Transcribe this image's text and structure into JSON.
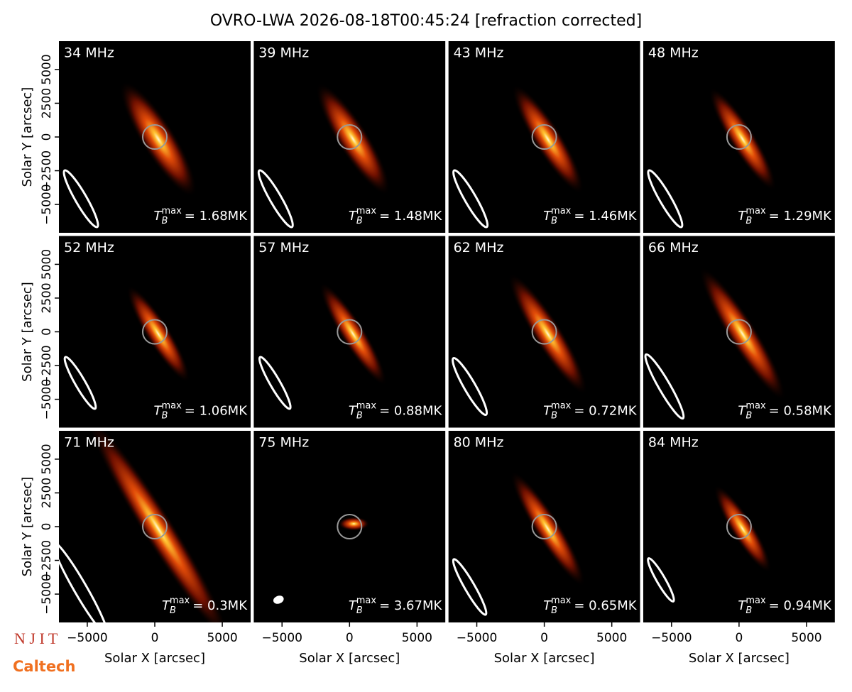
{
  "title": "OVRO-LWA 2026-08-18T00:45:24 [refraction corrected]",
  "logos": [
    "N J I T",
    "Caltech"
  ],
  "chart_data": [
    {
      "type": "image",
      "title": "34 MHz",
      "annotation": {
        "symbol": "T",
        "subscript": "B",
        "superscript": "max",
        "text": "= 1.68MK"
      },
      "xlim": [
        -7100,
        7100
      ],
      "ylim": [
        -7100,
        7100
      ],
      "ylabel": "Solar Y [arcsec]",
      "yticks": [
        {
          "value": 5000,
          "label": "5000"
        },
        {
          "value": 2500,
          "label": "2500"
        },
        {
          "value": 0,
          "label": "0"
        },
        {
          "value": -2500,
          "label": "−2500"
        },
        {
          "value": -5000,
          "label": "−5000"
        }
      ]
    },
    {
      "type": "image",
      "title": "39 MHz",
      "annotation": {
        "symbol": "T",
        "subscript": "B",
        "superscript": "max",
        "text": "= 1.48MK"
      },
      "xlim": [
        -7100,
        7100
      ],
      "ylim": [
        -7100,
        7100
      ]
    },
    {
      "type": "image",
      "title": "43 MHz",
      "annotation": {
        "symbol": "T",
        "subscript": "B",
        "superscript": "max",
        "text": "= 1.46MK"
      },
      "xlim": [
        -7100,
        7100
      ],
      "ylim": [
        -7100,
        7100
      ]
    },
    {
      "type": "image",
      "title": "48 MHz",
      "annotation": {
        "symbol": "T",
        "subscript": "B",
        "superscript": "max",
        "text": "= 1.29MK"
      },
      "xlim": [
        -7100,
        7100
      ],
      "ylim": [
        -7100,
        7100
      ]
    },
    {
      "type": "image",
      "title": "52 MHz",
      "annotation": {
        "symbol": "T",
        "subscript": "B",
        "superscript": "max",
        "text": "= 1.06MK"
      },
      "xlim": [
        -7100,
        7100
      ],
      "ylim": [
        -7100,
        7100
      ],
      "ylabel": "Solar Y [arcsec]",
      "yticks": [
        {
          "value": 5000,
          "label": "5000"
        },
        {
          "value": 2500,
          "label": "2500"
        },
        {
          "value": 0,
          "label": "0"
        },
        {
          "value": -2500,
          "label": "−2500"
        },
        {
          "value": -5000,
          "label": "−5000"
        }
      ]
    },
    {
      "type": "image",
      "title": "57 MHz",
      "annotation": {
        "symbol": "T",
        "subscript": "B",
        "superscript": "max",
        "text": "= 0.88MK"
      },
      "xlim": [
        -7100,
        7100
      ],
      "ylim": [
        -7100,
        7100
      ]
    },
    {
      "type": "image",
      "title": "62 MHz",
      "annotation": {
        "symbol": "T",
        "subscript": "B",
        "superscript": "max",
        "text": "= 0.72MK"
      },
      "xlim": [
        -7100,
        7100
      ],
      "ylim": [
        -7100,
        7100
      ]
    },
    {
      "type": "image",
      "title": "66 MHz",
      "annotation": {
        "symbol": "T",
        "subscript": "B",
        "superscript": "max",
        "text": "= 0.58MK"
      },
      "xlim": [
        -7100,
        7100
      ],
      "ylim": [
        -7100,
        7100
      ]
    },
    {
      "type": "image",
      "title": "71 MHz",
      "annotation": {
        "symbol": "T",
        "subscript": "B",
        "superscript": "max",
        "text": "= 0.3MK"
      },
      "xlim": [
        -7100,
        7100
      ],
      "ylim": [
        -7100,
        7100
      ],
      "ylabel": "Solar Y [arcsec]",
      "yticks": [
        {
          "value": 5000,
          "label": "5000"
        },
        {
          "value": 2500,
          "label": "2500"
        },
        {
          "value": 0,
          "label": "0"
        },
        {
          "value": -2500,
          "label": "−2500"
        },
        {
          "value": -5000,
          "label": "−5000"
        }
      ],
      "xlabel": "Solar X [arcsec]",
      "xticks": [
        {
          "value": -5000,
          "label": "−5000"
        },
        {
          "value": 0,
          "label": "0"
        },
        {
          "value": 5000,
          "label": "5000"
        }
      ]
    },
    {
      "type": "image",
      "title": "75 MHz",
      "annotation": {
        "symbol": "T",
        "subscript": "B",
        "superscript": "max",
        "text": "= 3.67MK"
      },
      "xlim": [
        -7100,
        7100
      ],
      "ylim": [
        -7100,
        7100
      ],
      "xlabel": "Solar X [arcsec]",
      "xticks": [
        {
          "value": -5000,
          "label": "−5000"
        },
        {
          "value": 0,
          "label": "0"
        },
        {
          "value": 5000,
          "label": "5000"
        }
      ]
    },
    {
      "type": "image",
      "title": "80 MHz",
      "annotation": {
        "symbol": "T",
        "subscript": "B",
        "superscript": "max",
        "text": "= 0.65MK"
      },
      "xlim": [
        -7100,
        7100
      ],
      "ylim": [
        -7100,
        7100
      ],
      "xlabel": "Solar X [arcsec]",
      "xticks": [
        {
          "value": -5000,
          "label": "−5000"
        },
        {
          "value": 0,
          "label": "0"
        },
        {
          "value": 5000,
          "label": "5000"
        }
      ]
    },
    {
      "type": "image",
      "title": "84 MHz",
      "annotation": {
        "symbol": "T",
        "subscript": "B",
        "superscript": "max",
        "text": "= 0.94MK"
      },
      "xlim": [
        -7100,
        7100
      ],
      "ylim": [
        -7100,
        7100
      ],
      "xlabel": "Solar X [arcsec]",
      "xticks": [
        {
          "value": -5000,
          "label": "−5000"
        },
        {
          "value": 0,
          "label": "0"
        },
        {
          "value": 5000,
          "label": "5000"
        }
      ]
    }
  ]
}
